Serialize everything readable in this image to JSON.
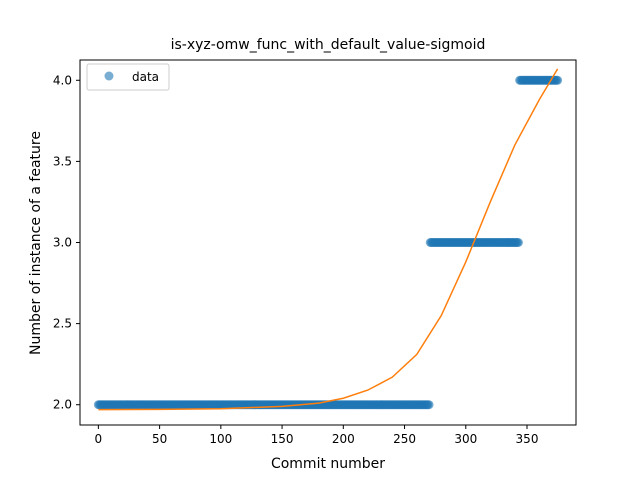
{
  "chart_data": {
    "type": "scatter",
    "title": "is-xyz-omw_func_with_default_value-sigmoid",
    "xlabel": "Commit number",
    "ylabel": "Number of instance of a feature",
    "xlim": [
      -15,
      390
    ],
    "ylim": [
      1.875,
      4.125
    ],
    "xticks": [
      0,
      50,
      100,
      150,
      200,
      250,
      300,
      350
    ],
    "yticks": [
      2.0,
      2.5,
      3.0,
      3.5,
      4.0
    ],
    "ytick_labels": [
      "2.0",
      "2.5",
      "3.0",
      "3.5",
      "4.0"
    ],
    "grid": false,
    "legend": {
      "position": "top-left",
      "entries": [
        "data"
      ]
    },
    "series": [
      {
        "name": "data",
        "kind": "points",
        "color": "#1f77b4",
        "alpha": 0.6,
        "segments": [
          {
            "y": 2.0,
            "x_start": 0,
            "x_end": 270
          },
          {
            "y": 3.0,
            "x_start": 271,
            "x_end": 343
          },
          {
            "y": 4.0,
            "x_start": 344,
            "x_end": 375
          }
        ]
      },
      {
        "kind": "line",
        "color": "#ff7f0e",
        "x": [
          0,
          50,
          100,
          150,
          180,
          200,
          220,
          240,
          260,
          280,
          300,
          320,
          340,
          360,
          375
        ],
        "y": [
          1.97,
          1.971,
          1.975,
          1.99,
          2.01,
          2.04,
          2.09,
          2.17,
          2.31,
          2.55,
          2.88,
          3.25,
          3.6,
          3.88,
          4.07
        ]
      }
    ]
  }
}
